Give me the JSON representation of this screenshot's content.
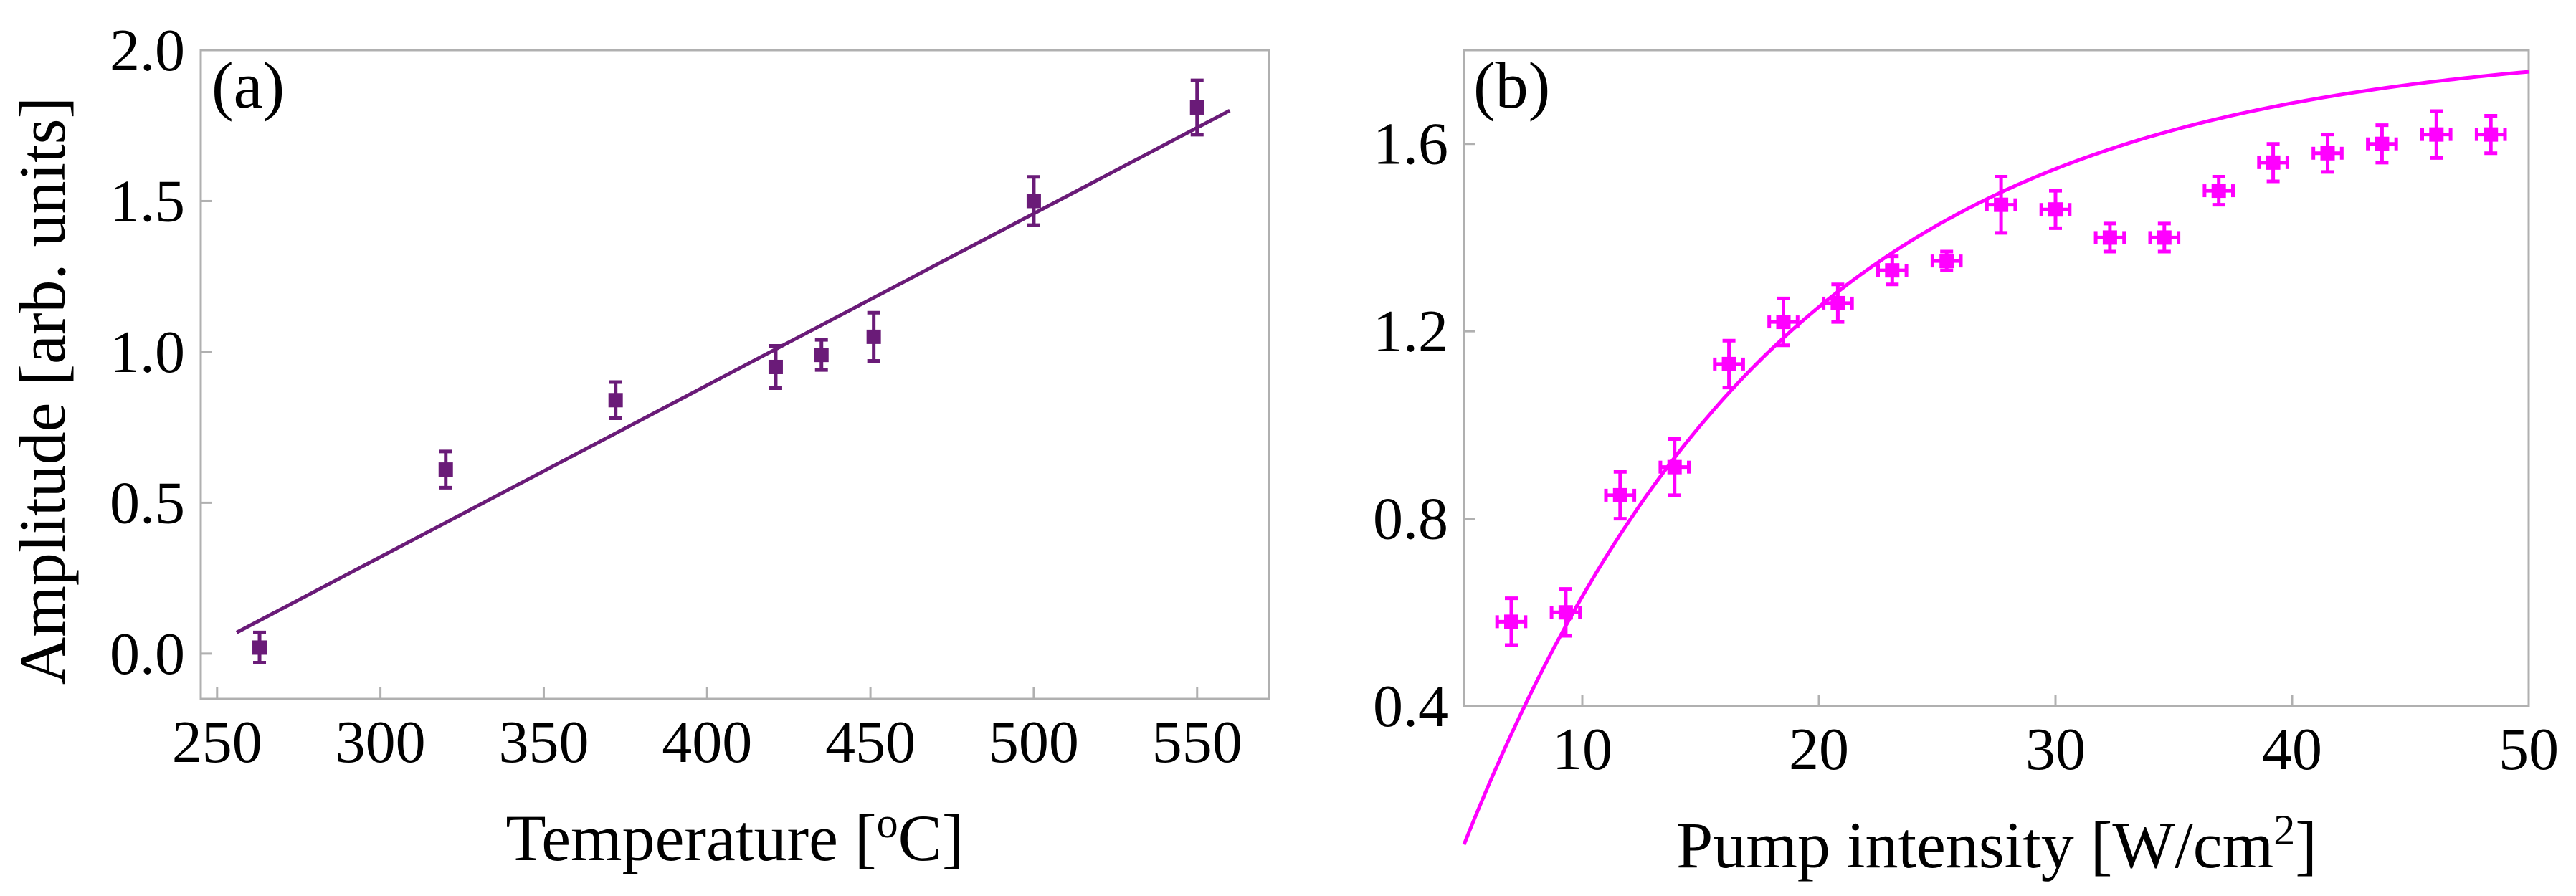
{
  "chart_data": [
    {
      "panel": "(a)",
      "type": "scatter",
      "xlabel": "Temperature [",
      "xlabel_sup": "o",
      "xlabel_end": "C]",
      "ylabel": "Amplitude [arb. units]",
      "xlim": [
        245,
        572
      ],
      "ylim": [
        -0.15,
        2.0
      ],
      "xticks": [
        "250",
        "300",
        "350",
        "400",
        "450",
        "500",
        "550"
      ],
      "xtick_values": [
        250,
        300,
        350,
        400,
        450,
        500,
        550
      ],
      "yticks": [
        "0.0",
        "0.5",
        "1.0",
        "1.5",
        "2.0"
      ],
      "ytick_values": [
        0.0,
        0.5,
        1.0,
        1.5,
        2.0
      ],
      "color": "#6a1b78",
      "points": [
        {
          "x": 263,
          "y": 0.02,
          "yerr": 0.05,
          "xerr": 1
        },
        {
          "x": 320,
          "y": 0.61,
          "yerr": 0.06,
          "xerr": 1
        },
        {
          "x": 372,
          "y": 0.84,
          "yerr": 0.06,
          "xerr": 1
        },
        {
          "x": 421,
          "y": 0.95,
          "yerr": 0.07,
          "xerr": 1
        },
        {
          "x": 435,
          "y": 0.99,
          "yerr": 0.05,
          "xerr": 1
        },
        {
          "x": 451,
          "y": 1.05,
          "yerr": 0.08,
          "xerr": 1
        },
        {
          "x": 500,
          "y": 1.5,
          "yerr": 0.08,
          "xerr": 1
        },
        {
          "x": 550,
          "y": 1.81,
          "yerr": 0.09,
          "xerr": 1
        }
      ],
      "fit": {
        "kind": "linear",
        "x": [
          256,
          560
        ],
        "y": [
          0.07,
          1.8
        ]
      }
    },
    {
      "panel": "(b)",
      "type": "scatter",
      "xlabel": "Pump intensity [W/cm",
      "xlabel_sup": "2",
      "xlabel_end": "]",
      "ylabel": "",
      "xlim": [
        5,
        50
      ],
      "ylim": [
        0.4,
        1.8
      ],
      "xticks": [
        "10",
        "20",
        "30",
        "40",
        "50"
      ],
      "xtick_values": [
        10,
        20,
        30,
        40,
        50
      ],
      "yticks": [
        "0.4",
        "0.8",
        "1.2",
        "1.6"
      ],
      "ytick_values": [
        0.4,
        0.8,
        1.2,
        1.6
      ],
      "color": "#ff00ff",
      "points": [
        {
          "x": 7.0,
          "y": 0.58,
          "yerr": 0.05,
          "xerr": 0.6
        },
        {
          "x": 9.3,
          "y": 0.6,
          "yerr": 0.05,
          "xerr": 0.6
        },
        {
          "x": 11.6,
          "y": 0.85,
          "yerr": 0.05,
          "xerr": 0.6
        },
        {
          "x": 13.9,
          "y": 0.91,
          "yerr": 0.06,
          "xerr": 0.6
        },
        {
          "x": 16.2,
          "y": 1.13,
          "yerr": 0.05,
          "xerr": 0.6
        },
        {
          "x": 18.5,
          "y": 1.22,
          "yerr": 0.05,
          "xerr": 0.6
        },
        {
          "x": 20.8,
          "y": 1.26,
          "yerr": 0.04,
          "xerr": 0.6
        },
        {
          "x": 23.1,
          "y": 1.33,
          "yerr": 0.03,
          "xerr": 0.6
        },
        {
          "x": 25.4,
          "y": 1.35,
          "yerr": 0.02,
          "xerr": 0.6
        },
        {
          "x": 27.7,
          "y": 1.47,
          "yerr": 0.06,
          "xerr": 0.6
        },
        {
          "x": 30.0,
          "y": 1.46,
          "yerr": 0.04,
          "xerr": 0.6
        },
        {
          "x": 32.3,
          "y": 1.4,
          "yerr": 0.03,
          "xerr": 0.6
        },
        {
          "x": 34.6,
          "y": 1.4,
          "yerr": 0.03,
          "xerr": 0.6
        },
        {
          "x": 36.9,
          "y": 1.5,
          "yerr": 0.03,
          "xerr": 0.6
        },
        {
          "x": 39.2,
          "y": 1.56,
          "yerr": 0.04,
          "xerr": 0.6
        },
        {
          "x": 41.5,
          "y": 1.58,
          "yerr": 0.04,
          "xerr": 0.6
        },
        {
          "x": 43.8,
          "y": 1.6,
          "yerr": 0.04,
          "xerr": 0.6
        },
        {
          "x": 46.1,
          "y": 1.62,
          "yerr": 0.05,
          "xerr": 0.6
        },
        {
          "x": 48.4,
          "y": 1.62,
          "yerr": 0.04,
          "xerr": 0.6
        }
      ],
      "fit": {
        "kind": "saturation",
        "A": 1.815,
        "x0": 4.2,
        "tau": 13.5
      }
    }
  ]
}
